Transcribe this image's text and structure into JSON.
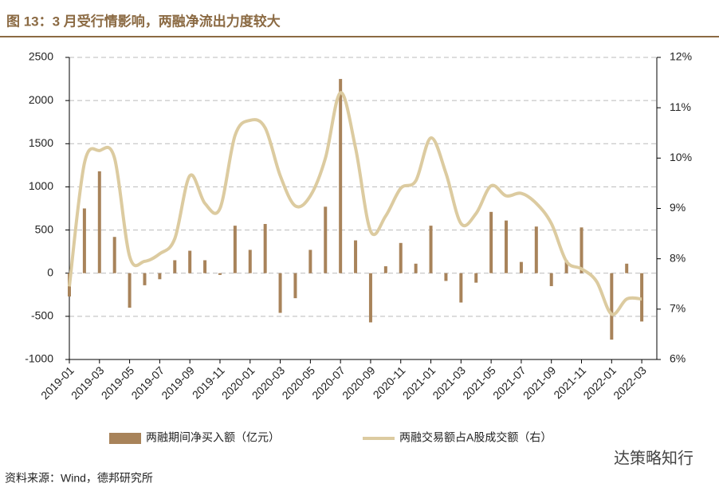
{
  "chart_data": {
    "type": "bar",
    "title": "图 13：3 月受行情影响，两融净流出力度较大",
    "source": "资料来源：Wind，德邦研究所",
    "categories": [
      "2019-01",
      null,
      "2019-03",
      null,
      "2019-05",
      null,
      "2019-07",
      null,
      "2019-09",
      null,
      "2019-11",
      null,
      "2020-01",
      null,
      "2020-03",
      null,
      "2020-05",
      null,
      "2020-07",
      null,
      "2020-09",
      null,
      "2020-11",
      null,
      "2021-01",
      null,
      "2021-03",
      null,
      "2021-05",
      null,
      "2021-07",
      null,
      "2021-09",
      null,
      "2021-11",
      null,
      "2022-01",
      null,
      "2022-03"
    ],
    "series": [
      {
        "name": "两融期间净买入额（亿元）",
        "color": "#a8835a",
        "type": "bar",
        "values": [
          -270,
          750,
          1180,
          420,
          -400,
          -140,
          -70,
          150,
          260,
          150,
          -20,
          550,
          270,
          570,
          -460,
          -290,
          270,
          770,
          2250,
          380,
          -570,
          80,
          350,
          110,
          550,
          -90,
          -340,
          -110,
          710,
          610,
          130,
          540,
          -150,
          150,
          530,
          0,
          -770,
          110,
          -560
        ]
      },
      {
        "name": "两融交易额占A股成交额（右）",
        "color": "#dccba0",
        "type": "line",
        "axis": "y2",
        "values": [
          7.45,
          9.9,
          10.15,
          10.0,
          8.05,
          7.95,
          8.1,
          8.4,
          9.65,
          9.1,
          9.0,
          10.45,
          10.75,
          10.6,
          9.65,
          9.05,
          9.25,
          10.0,
          11.3,
          10.2,
          8.55,
          8.85,
          9.4,
          9.55,
          10.4,
          9.7,
          8.7,
          8.9,
          9.45,
          9.25,
          9.3,
          9.1,
          8.7,
          7.95,
          7.8,
          7.55,
          6.9,
          7.2,
          7.2
        ]
      }
    ],
    "ylim": [
      -1000,
      2500
    ],
    "yticks": [
      -1000,
      -500,
      0,
      500,
      1000,
      1500,
      2000,
      2500
    ],
    "y2lim": [
      6,
      12
    ],
    "y2ticks": [
      {
        "value": 6,
        "label": "6%"
      },
      {
        "value": 7,
        "label": "7%"
      },
      {
        "value": 8,
        "label": "8%"
      },
      {
        "value": 9,
        "label": "9%"
      },
      {
        "value": 10,
        "label": "10%"
      },
      {
        "value": 11,
        "label": "11%"
      },
      {
        "value": 12,
        "label": "12%"
      }
    ],
    "grid": true
  },
  "watermark": "达策略知行"
}
